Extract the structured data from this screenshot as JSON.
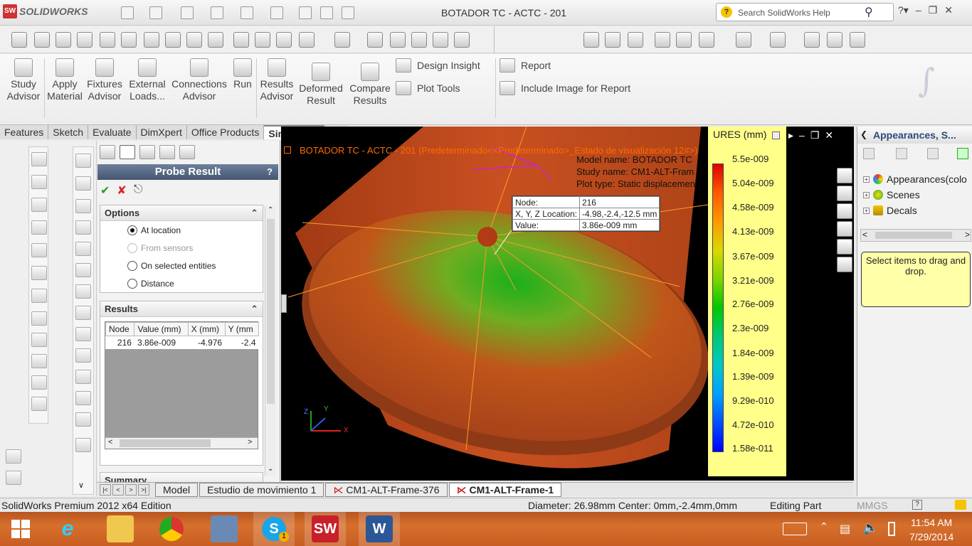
{
  "app": {
    "brand": "SOLIDWORKS",
    "title": "BOTADOR TC -  ACTC - 201"
  },
  "search": {
    "placeholder": "Search SolidWorks Help",
    "icon": "help-icon"
  },
  "window_controls": [
    "?",
    "-",
    "restore",
    "close"
  ],
  "ribbon": {
    "buttons": [
      {
        "label_1": "Study",
        "label_2": "Advisor"
      },
      {
        "label_1": "Apply",
        "label_2": "Material"
      },
      {
        "label_1": "Fixtures",
        "label_2": "Advisor"
      },
      {
        "label_1": "External",
        "label_2": "Loads..."
      },
      {
        "label_1": "Connections",
        "label_2": "Advisor"
      },
      {
        "label_1": "Run",
        "label_2": ""
      },
      {
        "label_1": "Results",
        "label_2": "Advisor"
      },
      {
        "label_1": "Deformed",
        "label_2": "Result"
      },
      {
        "label_1": "Compare",
        "label_2": "Results"
      }
    ],
    "design_insight": "Design Insight",
    "plot_tools": "Plot Tools",
    "report": "Report",
    "include_image": "Include Image for Report"
  },
  "tabs": [
    "Features",
    "Sketch",
    "Evaluate",
    "DimXpert",
    "Office Products",
    "Simulation"
  ],
  "active_tab": "Simulation",
  "property_manager": {
    "title": "Probe Result",
    "help": "?",
    "options_label": "Options",
    "options": [
      {
        "label": "At location",
        "checked": true,
        "disabled": false
      },
      {
        "label": "From sensors",
        "checked": false,
        "disabled": true
      },
      {
        "label": "On selected entities",
        "checked": false,
        "disabled": false
      },
      {
        "label": "Distance",
        "checked": false,
        "disabled": false
      }
    ],
    "results_label": "Results",
    "results_columns": [
      "Node",
      "Value (mm)",
      "X (mm)",
      "Y (mm"
    ],
    "results_rows": [
      [
        "216",
        "3.86e-009",
        "-4.976",
        "-2.4"
      ]
    ],
    "summary_label": "Summary"
  },
  "viewport": {
    "title": "BOTADOR TC -  ACTC - 201  (Predeterminado<<Predeterminado>_Estado de visualización 12#>)",
    "model_name_label": "Model name:",
    "model_name": "BOTADOR TC",
    "study_name_label": "Study name:",
    "study_name": "CM1-ALT-Fram",
    "plot_type_label": "Plot type:",
    "plot_type": "Static displacemen",
    "probe": {
      "node_label": "Node:",
      "node_value": "216",
      "loc_label": "X, Y, Z Location:",
      "loc_value": "-4.98,-2.4,-12.5 mm",
      "value_label": "Value:",
      "value_value": "3.86e-009  mm"
    },
    "triad": {
      "x": "X",
      "y": "Y",
      "z": "Z"
    }
  },
  "legend": {
    "title": "URES (mm)",
    "values": [
      "5.5e-009",
      "5.04e-009",
      "4.58e-009",
      "4.13e-009",
      "3.67e-009",
      "3.21e-009",
      "2.76e-009",
      "2.3e-009",
      "1.84e-009",
      "1.39e-009",
      "9.29e-010",
      "4.72e-010",
      "1.58e-011"
    ]
  },
  "right_pane": {
    "title": "Appearances, S...",
    "tree": [
      "Appearances(colo",
      "Scenes",
      "Decals"
    ],
    "drop_hint": "Select items to drag and drop."
  },
  "bottom_tabs": [
    "Model",
    "Estudio de movimiento 1",
    "CM1-ALT-Frame-376",
    "CM1-ALT-Frame-1"
  ],
  "active_bottom_tab": "CM1-ALT-Frame-1",
  "status": {
    "edition": "SolidWorks Premium 2012 x64 Edition",
    "measure": "Diameter: 26.98mm  Center: 0mm,-2.4mm,0mm",
    "mode": "Editing Part",
    "units": "MMGS"
  },
  "taskbar": {
    "time": "11:54 AM",
    "date": "7/29/2014",
    "skype_badge": "1",
    "sw_label": "SW",
    "word_label": "W"
  }
}
